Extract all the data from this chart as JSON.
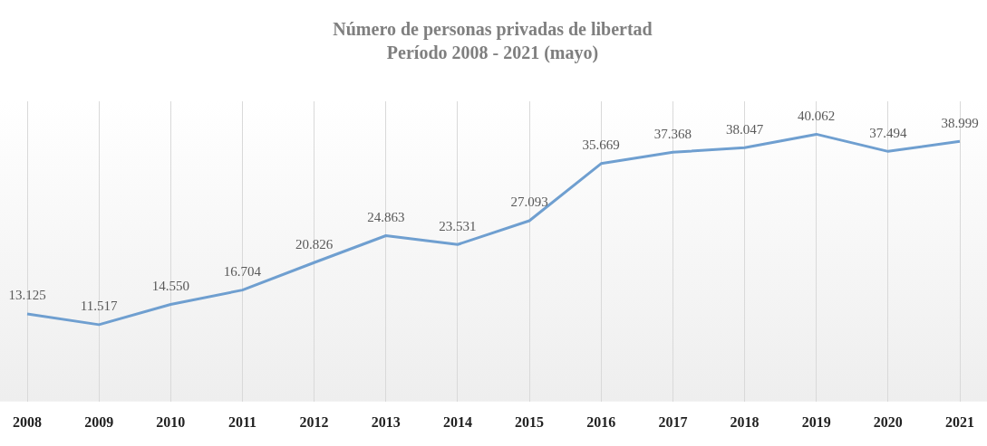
{
  "chart_data": {
    "type": "line",
    "title": "Número de personas privadas de libertad",
    "subtitle": "Período 2008 - 2021 (mayo)",
    "categories": [
      "2008",
      "2009",
      "2010",
      "2011",
      "2012",
      "2013",
      "2014",
      "2015",
      "2016",
      "2017",
      "2018",
      "2019",
      "2020",
      "2021"
    ],
    "values": [
      13125,
      11517,
      14550,
      16704,
      20826,
      24863,
      23531,
      27093,
      35669,
      37368,
      38047,
      40062,
      37494,
      38999
    ],
    "value_labels": [
      "13.125",
      "11.517",
      "14.550",
      "16.704",
      "20.826",
      "24.863",
      "23.531",
      "27.093",
      "35.669",
      "37.368",
      "38.047",
      "40.062",
      "37.494",
      "38.999"
    ],
    "color": "#6f9fd0",
    "ylim": [
      0,
      45000
    ],
    "grid": "x",
    "tick_labels": "x",
    "marker": "none",
    "line_style": "solid",
    "legend": false
  }
}
